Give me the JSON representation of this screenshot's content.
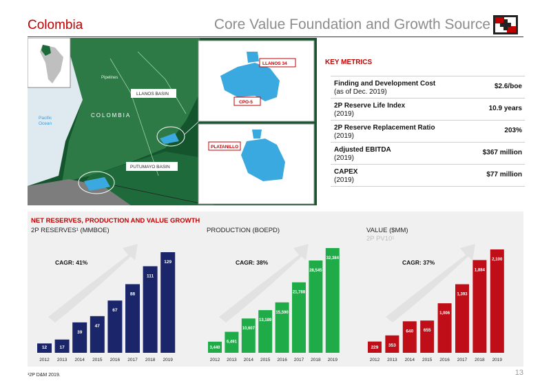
{
  "header": {
    "country": "Colombia",
    "title": "Core Value Foundation and Growth Source"
  },
  "map": {
    "country_label": "COLOMBIA",
    "pipelines_label": "Pipelines",
    "ocean_label_1": "Pacific",
    "ocean_label_2": "Ocean",
    "llanos_basin": "LLANOS BASIN",
    "putumayo_basin": "PUTUMAYO BASIN",
    "llanos34": "LLANOS 34",
    "cpo5": "CPO-5",
    "platanillo": "PLATANILLO"
  },
  "key_metrics": {
    "title": "KEY METRICS",
    "rows": [
      {
        "label": "Finding and Development Cost",
        "sub": "(as of Dec. 2019)",
        "value": "$2.6/boe"
      },
      {
        "label": "2P Reserve Life Index",
        "sub": "(2019)",
        "value": "10.9 years"
      },
      {
        "label": "2P Reserve Replacement Ratio",
        "sub": "(2019)",
        "value": "203%"
      },
      {
        "label": "Adjusted EBITDA",
        "sub": "(2019)",
        "value": "$367 million"
      },
      {
        "label": "CAPEX",
        "sub": "(2019)",
        "value": "$77 million"
      }
    ]
  },
  "growth_panel_title": "NET RESERVES, PRODUCTION AND VALUE GROWTH",
  "chart_data": [
    {
      "type": "bar",
      "title": "2P RESERVES¹ (MMBOE)",
      "cagr": "CAGR: 41%",
      "color": "#1a2669",
      "categories": [
        "2012",
        "2013",
        "2014",
        "2015",
        "2016",
        "2017",
        "2018",
        "2019"
      ],
      "values": [
        12,
        17,
        39,
        47,
        67,
        88,
        111,
        129
      ],
      "labels": [
        "12",
        "17",
        "39",
        "47",
        "67",
        "88",
        "111",
        "129"
      ]
    },
    {
      "type": "bar",
      "title": "PRODUCTION (BOEPD)",
      "cagr": "CAGR: 38%",
      "color": "#1fab47",
      "categories": [
        "2012",
        "2013",
        "2014",
        "2015",
        "2016",
        "2017",
        "2018",
        "2019"
      ],
      "values": [
        3440,
        6491,
        10607,
        13189,
        15590,
        21788,
        28545,
        32384
      ],
      "labels": [
        "3,440",
        "6,491",
        "10,607",
        "13,189",
        "15,590",
        "21,788",
        "28,545",
        "32,384"
      ]
    },
    {
      "type": "bar",
      "title": "VALUE ($MM)",
      "subtitle": "2P PV10¹",
      "cagr": "CAGR: 37%",
      "color": "#bf0e17",
      "categories": [
        "2012",
        "2013",
        "2014",
        "2015",
        "2016",
        "2017",
        "2018",
        "2019"
      ],
      "values": [
        229,
        353,
        640,
        655,
        1006,
        1393,
        1884,
        2100
      ],
      "labels": [
        "229",
        "353",
        "640",
        "655",
        "1,006",
        "1,393",
        "1,884",
        "2,100"
      ]
    }
  ],
  "footnote": "¹2P D&M 2019.",
  "page_number": "13"
}
